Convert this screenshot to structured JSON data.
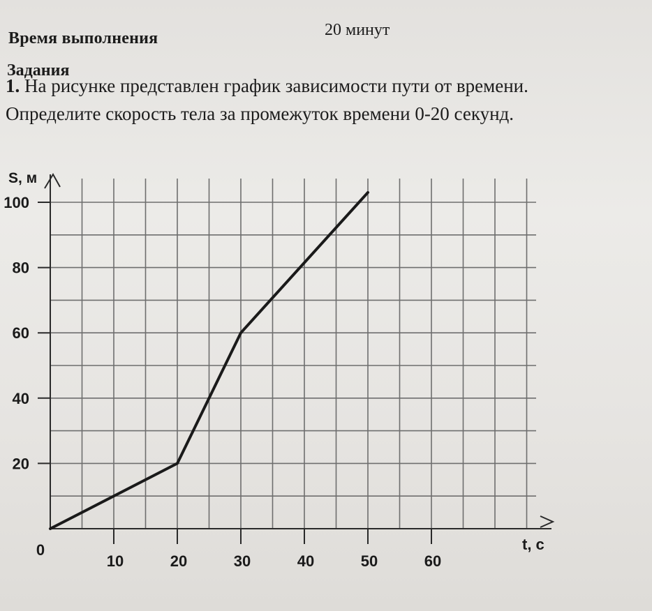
{
  "header": {
    "label": "Время выполнения",
    "value": "20 минут"
  },
  "section_title": "Задания",
  "task": {
    "number": "1.",
    "line1": "На рисунке представлен график зависимости пути от времени.",
    "line2": "Определите скорость тела за промежуток времени 0-20 секунд."
  },
  "chart_data": {
    "type": "line",
    "title": "",
    "xlabel": "t, с",
    "ylabel": "S, м",
    "origin_label": "0",
    "xlim": [
      0,
      70
    ],
    "ylim": [
      0,
      105
    ],
    "x_ticks": [
      "10",
      "20",
      "30",
      "40",
      "50",
      "60"
    ],
    "x_tick_values": [
      10,
      20,
      30,
      40,
      50,
      60
    ],
    "y_ticks": [
      "20",
      "40",
      "60",
      "80",
      "100"
    ],
    "y_tick_values": [
      20,
      40,
      60,
      80,
      100
    ],
    "grid": true,
    "series": [
      {
        "x": [
          0,
          20,
          30,
          50
        ],
        "y": [
          0,
          20,
          60,
          103
        ]
      }
    ],
    "colors": {
      "line": "#1a1a1a",
      "grid": "#6e6e6e",
      "axis": "#2a2a2a"
    }
  }
}
